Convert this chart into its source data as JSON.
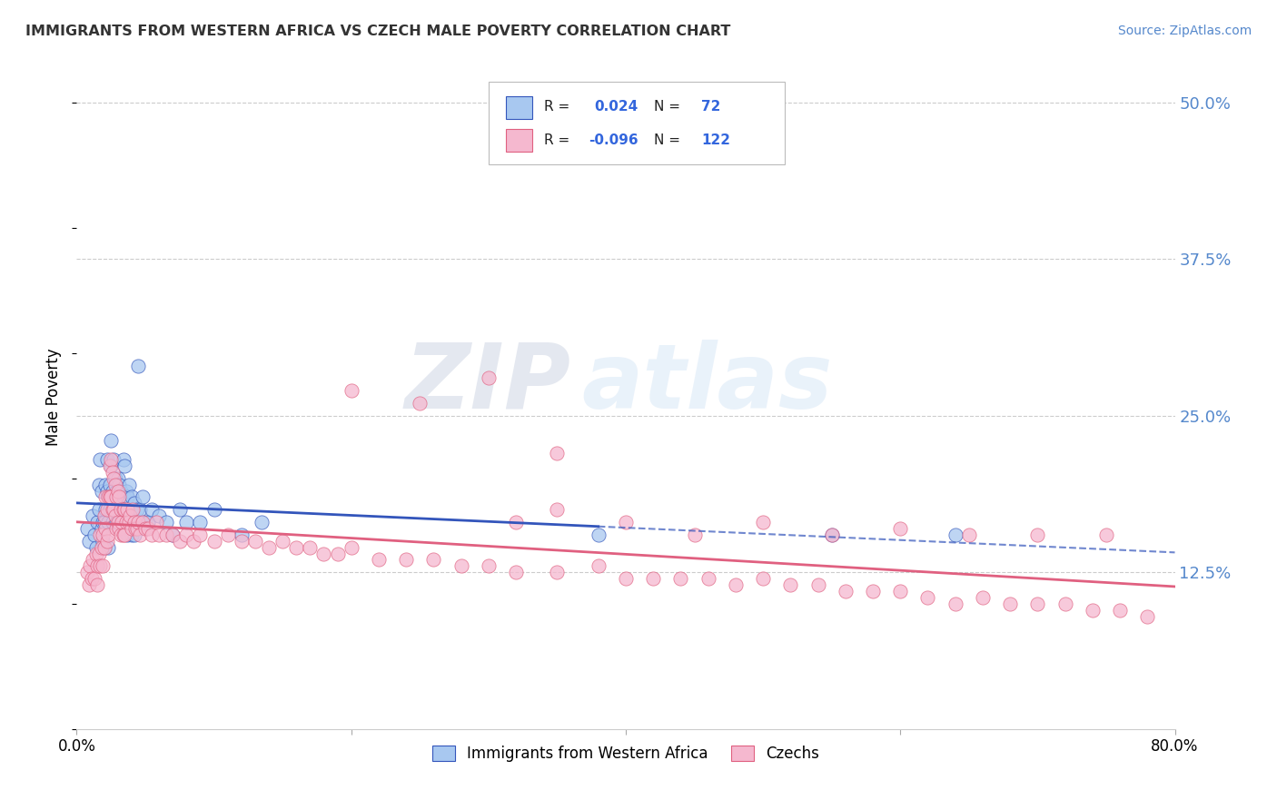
{
  "title": "IMMIGRANTS FROM WESTERN AFRICA VS CZECH MALE POVERTY CORRELATION CHART",
  "source": "Source: ZipAtlas.com",
  "ylabel": "Male Poverty",
  "ytick_values": [
    0.125,
    0.25,
    0.375,
    0.5
  ],
  "ytick_labels": [
    "12.5%",
    "25.0%",
    "37.5%",
    "50.0%"
  ],
  "xmin": 0.0,
  "xmax": 0.8,
  "ymin": 0.0,
  "ymax": 0.53,
  "watermark_zip": "ZIP",
  "watermark_atlas": "atlas",
  "color_blue": "#a8c8f0",
  "color_pink": "#f5b8cf",
  "line_blue": "#3355bb",
  "line_pink": "#e06080",
  "legend_label1": "Immigrants from Western Africa",
  "legend_label2": "Czechs",
  "blue_scatter_x": [
    0.008,
    0.009,
    0.012,
    0.013,
    0.014,
    0.015,
    0.016,
    0.016,
    0.017,
    0.018,
    0.018,
    0.019,
    0.019,
    0.02,
    0.02,
    0.021,
    0.021,
    0.022,
    0.022,
    0.023,
    0.023,
    0.024,
    0.024,
    0.025,
    0.025,
    0.026,
    0.026,
    0.027,
    0.027,
    0.028,
    0.028,
    0.029,
    0.029,
    0.03,
    0.03,
    0.031,
    0.031,
    0.032,
    0.032,
    0.033,
    0.034,
    0.034,
    0.035,
    0.035,
    0.036,
    0.037,
    0.037,
    0.038,
    0.038,
    0.04,
    0.04,
    0.042,
    0.042,
    0.044,
    0.045,
    0.046,
    0.048,
    0.05,
    0.052,
    0.055,
    0.06,
    0.065,
    0.07,
    0.075,
    0.08,
    0.09,
    0.1,
    0.12,
    0.135,
    0.38,
    0.55,
    0.64
  ],
  "blue_scatter_y": [
    0.16,
    0.15,
    0.17,
    0.155,
    0.145,
    0.165,
    0.195,
    0.175,
    0.215,
    0.19,
    0.16,
    0.165,
    0.15,
    0.165,
    0.145,
    0.195,
    0.175,
    0.215,
    0.19,
    0.165,
    0.145,
    0.195,
    0.175,
    0.23,
    0.21,
    0.19,
    0.165,
    0.215,
    0.18,
    0.2,
    0.175,
    0.19,
    0.165,
    0.2,
    0.175,
    0.195,
    0.165,
    0.19,
    0.165,
    0.175,
    0.215,
    0.185,
    0.21,
    0.175,
    0.19,
    0.185,
    0.155,
    0.195,
    0.17,
    0.185,
    0.155,
    0.18,
    0.155,
    0.175,
    0.29,
    0.175,
    0.185,
    0.165,
    0.165,
    0.175,
    0.17,
    0.165,
    0.155,
    0.175,
    0.165,
    0.165,
    0.175,
    0.155,
    0.165,
    0.155,
    0.155,
    0.155
  ],
  "pink_scatter_x": [
    0.008,
    0.009,
    0.01,
    0.011,
    0.012,
    0.013,
    0.014,
    0.015,
    0.015,
    0.016,
    0.017,
    0.017,
    0.018,
    0.019,
    0.019,
    0.02,
    0.02,
    0.021,
    0.021,
    0.022,
    0.022,
    0.023,
    0.023,
    0.024,
    0.024,
    0.025,
    0.025,
    0.026,
    0.026,
    0.027,
    0.027,
    0.028,
    0.028,
    0.029,
    0.029,
    0.03,
    0.03,
    0.031,
    0.031,
    0.032,
    0.032,
    0.033,
    0.034,
    0.034,
    0.035,
    0.035,
    0.036,
    0.037,
    0.038,
    0.039,
    0.04,
    0.041,
    0.042,
    0.043,
    0.044,
    0.045,
    0.046,
    0.048,
    0.05,
    0.052,
    0.055,
    0.058,
    0.06,
    0.065,
    0.07,
    0.075,
    0.08,
    0.085,
    0.09,
    0.1,
    0.11,
    0.12,
    0.13,
    0.14,
    0.15,
    0.16,
    0.17,
    0.18,
    0.19,
    0.2,
    0.22,
    0.24,
    0.26,
    0.28,
    0.3,
    0.32,
    0.35,
    0.38,
    0.4,
    0.42,
    0.44,
    0.46,
    0.48,
    0.5,
    0.52,
    0.54,
    0.56,
    0.58,
    0.6,
    0.62,
    0.64,
    0.66,
    0.68,
    0.7,
    0.72,
    0.74,
    0.76,
    0.78,
    0.32,
    0.35,
    0.4,
    0.45,
    0.5,
    0.55,
    0.6,
    0.65,
    0.7,
    0.75,
    0.2,
    0.25,
    0.3,
    0.35
  ],
  "pink_scatter_y": [
    0.125,
    0.115,
    0.13,
    0.12,
    0.135,
    0.12,
    0.14,
    0.13,
    0.115,
    0.14,
    0.155,
    0.13,
    0.145,
    0.155,
    0.13,
    0.17,
    0.145,
    0.185,
    0.16,
    0.175,
    0.15,
    0.185,
    0.155,
    0.21,
    0.185,
    0.215,
    0.185,
    0.205,
    0.175,
    0.2,
    0.175,
    0.195,
    0.17,
    0.185,
    0.16,
    0.19,
    0.165,
    0.185,
    0.16,
    0.175,
    0.155,
    0.165,
    0.175,
    0.155,
    0.175,
    0.155,
    0.165,
    0.175,
    0.165,
    0.17,
    0.16,
    0.175,
    0.165,
    0.16,
    0.16,
    0.165,
    0.155,
    0.165,
    0.16,
    0.16,
    0.155,
    0.165,
    0.155,
    0.155,
    0.155,
    0.15,
    0.155,
    0.15,
    0.155,
    0.15,
    0.155,
    0.15,
    0.15,
    0.145,
    0.15,
    0.145,
    0.145,
    0.14,
    0.14,
    0.145,
    0.135,
    0.135,
    0.135,
    0.13,
    0.13,
    0.125,
    0.125,
    0.13,
    0.12,
    0.12,
    0.12,
    0.12,
    0.115,
    0.12,
    0.115,
    0.115,
    0.11,
    0.11,
    0.11,
    0.105,
    0.1,
    0.105,
    0.1,
    0.1,
    0.1,
    0.095,
    0.095,
    0.09,
    0.165,
    0.175,
    0.165,
    0.155,
    0.165,
    0.155,
    0.16,
    0.155,
    0.155,
    0.155,
    0.27,
    0.26,
    0.28,
    0.22
  ]
}
